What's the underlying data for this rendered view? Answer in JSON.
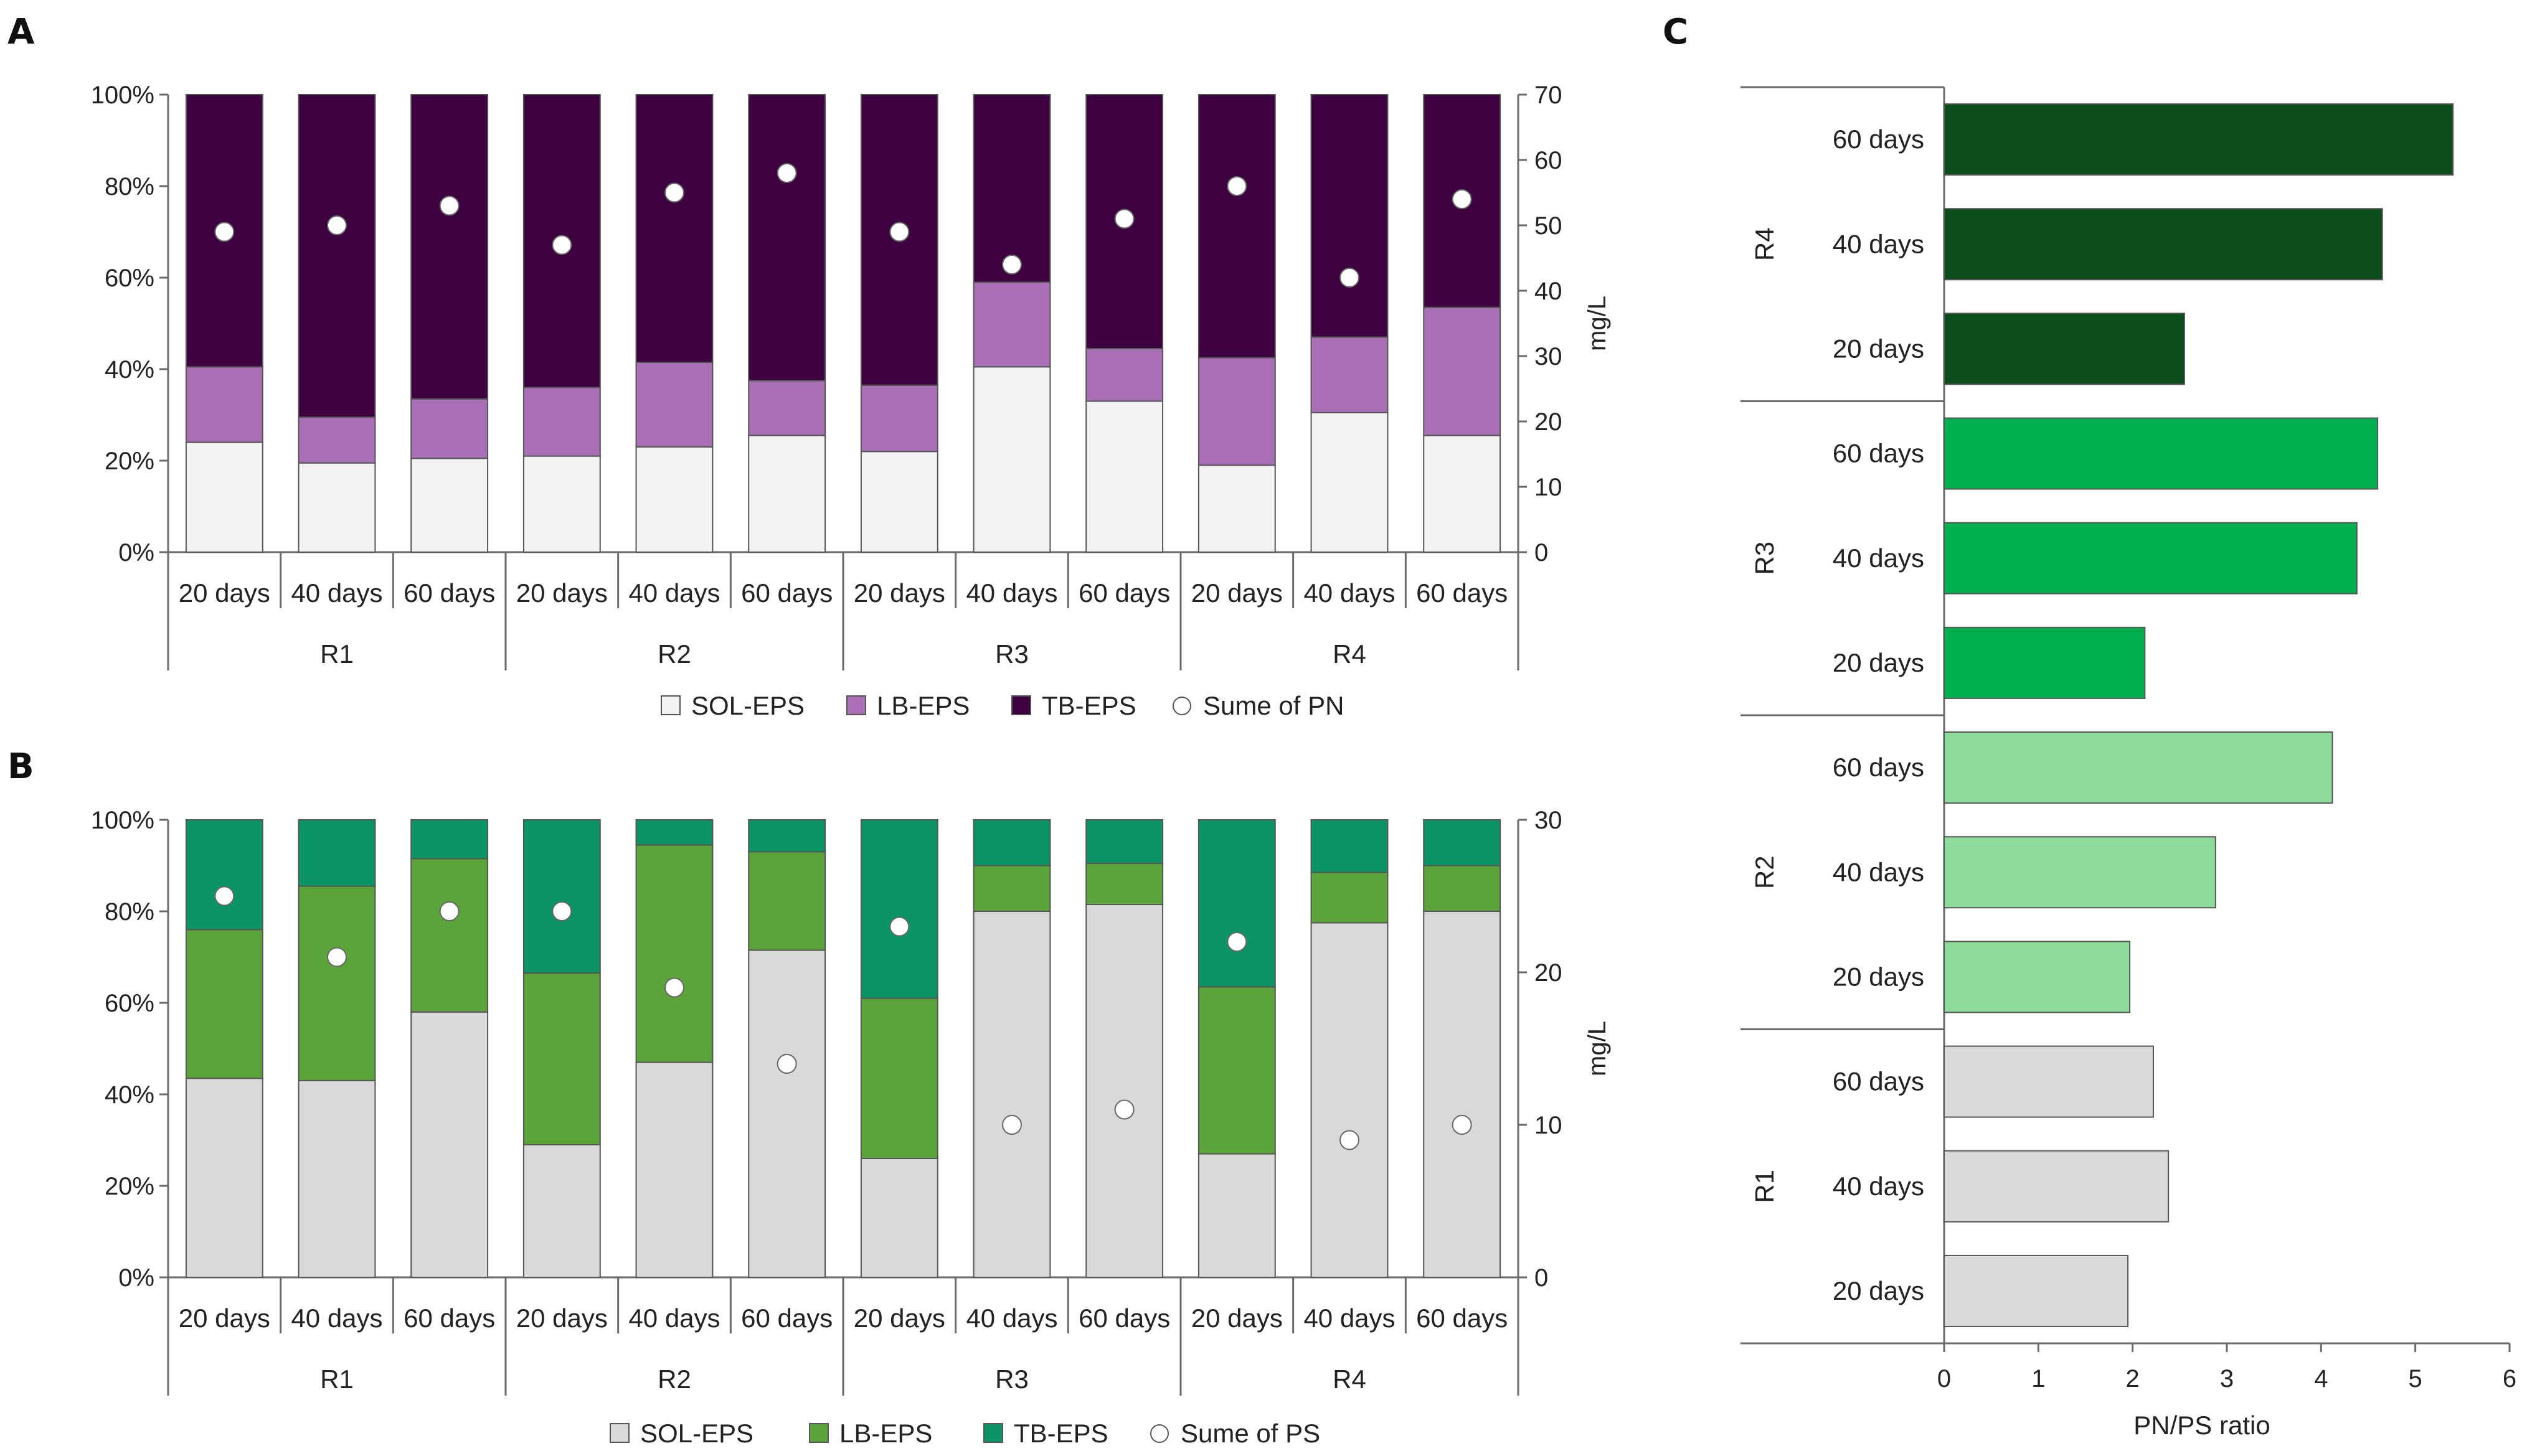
{
  "panels": {
    "a": "A",
    "b": "B",
    "c": "C"
  },
  "colors": {
    "sol_a": "#f2f2f2",
    "lb_a": "#a86fb4",
    "tb_a": "#3d0040",
    "sol_b": "#d9d9d9",
    "lb_b": "#5aa43a",
    "tb_b": "#0b9567",
    "c_r1": "#d9d9d9",
    "c_r2": "#8ddc9c",
    "c_r3": "#00b050",
    "c_r4": "#0b4d1b",
    "axis": "#6a6a6a"
  },
  "chart_data": [
    {
      "id": "A",
      "type": "bar",
      "stacked": true,
      "categories": [
        "20 days",
        "40 days",
        "60 days",
        "20 days",
        "40 days",
        "60 days",
        "20 days",
        "40 days",
        "60 days",
        "20 days",
        "40 days",
        "60 days"
      ],
      "groups": [
        "R1",
        "R2",
        "R3",
        "R4"
      ],
      "series": [
        {
          "name": "SOL-EPS",
          "values": [
            24,
            19.5,
            20.5,
            21,
            23,
            25.5,
            22,
            40.5,
            33,
            19,
            30.5,
            25.5
          ]
        },
        {
          "name": "LB-EPS",
          "values": [
            16.5,
            10,
            13,
            15,
            18.5,
            12,
            14.5,
            18.5,
            11.5,
            23.5,
            16.5,
            28
          ]
        },
        {
          "name": "TB-EPS",
          "values": [
            59.5,
            70.5,
            66.5,
            64,
            58.5,
            62.5,
            63.5,
            41,
            55.5,
            57.5,
            53,
            46.5
          ]
        }
      ],
      "overlay": {
        "name": "Sume of PN",
        "values": [
          49,
          50,
          53,
          47,
          55,
          58,
          49,
          44,
          51,
          56,
          42,
          54
        ]
      },
      "left_axis": {
        "ticks": [
          "0%",
          "20%",
          "40%",
          "60%",
          "80%",
          "100%"
        ],
        "ylim": [
          0,
          100
        ]
      },
      "right_axis": {
        "label": "mg/L",
        "ticks": [
          "0",
          "10",
          "20",
          "30",
          "40",
          "50",
          "60",
          "70"
        ],
        "ylim": [
          0,
          70
        ]
      },
      "legend": [
        "SOL-EPS",
        "LB-EPS",
        "TB-EPS",
        "Sume of PN"
      ]
    },
    {
      "id": "B",
      "type": "bar",
      "stacked": true,
      "categories": [
        "20 days",
        "40 days",
        "60 days",
        "20 days",
        "40 days",
        "60 days",
        "20 days",
        "40 days",
        "60 days",
        "20 days",
        "40 days",
        "60 days"
      ],
      "groups": [
        "R1",
        "R2",
        "R3",
        "R4"
      ],
      "series": [
        {
          "name": "SOL-EPS",
          "values": [
            43.5,
            43,
            58,
            29,
            47,
            71.5,
            26,
            80,
            81.5,
            27,
            77.5,
            80
          ]
        },
        {
          "name": "LB-EPS",
          "values": [
            32.5,
            42.5,
            33.5,
            37.5,
            47.5,
            21.5,
            35,
            10,
            9,
            36.5,
            11,
            10
          ]
        },
        {
          "name": "TB-EPS",
          "values": [
            24,
            14.5,
            8.5,
            33.5,
            5.5,
            7,
            39,
            10,
            9.5,
            36.5,
            11.5,
            10
          ]
        }
      ],
      "overlay": {
        "name": "Sume of PS",
        "values": [
          25,
          21,
          24,
          24,
          19,
          14,
          23,
          10,
          11,
          22,
          9,
          10
        ]
      },
      "left_axis": {
        "ticks": [
          "0%",
          "20%",
          "40%",
          "60%",
          "80%",
          "100%"
        ],
        "ylim": [
          0,
          100
        ]
      },
      "right_axis": {
        "label": "mg/L",
        "ticks": [
          "0",
          "10",
          "20",
          "30"
        ],
        "ylim": [
          0,
          30
        ]
      },
      "legend": [
        "SOL-EPS",
        "LB-EPS",
        "TB-EPS",
        "Sume of PS"
      ]
    },
    {
      "id": "C",
      "type": "bar",
      "orientation": "horizontal",
      "xlabel": "PN/PS ratio",
      "xlim": [
        0,
        6
      ],
      "xticks": [
        "0",
        "1",
        "2",
        "3",
        "4",
        "5",
        "6"
      ],
      "groups": [
        {
          "name": "R4",
          "categories": [
            "60 days",
            "40 days",
            "20 days"
          ],
          "values": [
            5.4,
            4.65,
            2.55
          ]
        },
        {
          "name": "R3",
          "categories": [
            "60 days",
            "40 days",
            "20 days"
          ],
          "values": [
            4.6,
            4.38,
            2.13
          ]
        },
        {
          "name": "R2",
          "categories": [
            "60 days",
            "40 days",
            "20 days"
          ],
          "values": [
            4.12,
            2.88,
            1.97
          ]
        },
        {
          "name": "R1",
          "categories": [
            "60 days",
            "40 days",
            "20 days"
          ],
          "values": [
            2.22,
            2.38,
            1.95
          ]
        }
      ]
    }
  ]
}
